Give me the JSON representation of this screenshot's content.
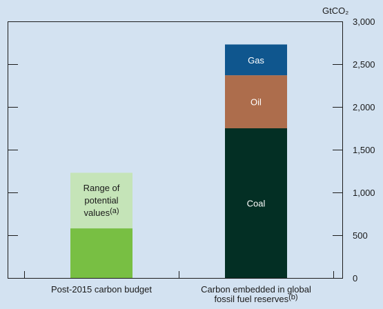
{
  "chart_data": {
    "type": "bar",
    "stacked": true,
    "unit_label": "GtCO₂",
    "ylim": [
      0,
      3000
    ],
    "y_ticks": [
      0,
      500,
      1000,
      1500,
      2000,
      2500,
      3000
    ],
    "y_tick_labels": [
      "0",
      "500",
      "1,000",
      "1,500",
      "2,000",
      "2,500",
      "3,000"
    ],
    "y_axis_side": "right",
    "grid": false,
    "categories": [
      {
        "label": "Post-2015 carbon budget",
        "superscript": ""
      },
      {
        "label_lines": [
          "Carbon embedded in global",
          "fossil fuel reserves"
        ],
        "superscript": "(b)"
      }
    ],
    "series": [
      {
        "name": "",
        "color": "#78bf43",
        "values": [
          580,
          0
        ]
      },
      {
        "name": "Range of potential values",
        "color": "#c5e4b8",
        "values": [
          650,
          0
        ],
        "label_lines": [
          "Range of",
          "potential",
          "values"
        ],
        "label_superscript": "(a)"
      },
      {
        "name": "Coal",
        "color": "#032f24",
        "values": [
          0,
          1750
        ]
      },
      {
        "name": "Oil",
        "color": "#ad6d4c",
        "values": [
          0,
          620
        ]
      },
      {
        "name": "Gas",
        "color": "#0f568e",
        "values": [
          0,
          360
        ]
      }
    ]
  }
}
